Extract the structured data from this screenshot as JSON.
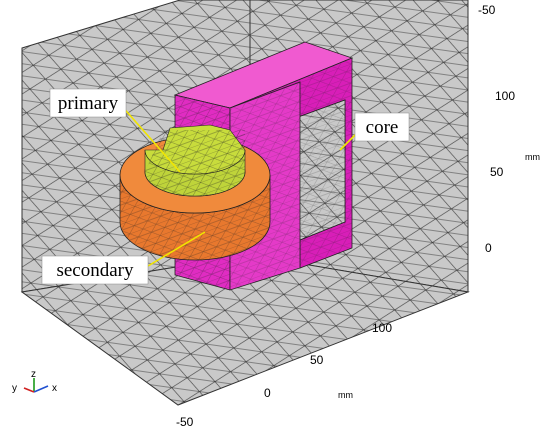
{
  "labels": {
    "primary": "primary",
    "core": "core",
    "secondary": "secondary"
  },
  "back_axis": {
    "ticks": [
      "-50"
    ]
  },
  "vertical_axis": {
    "ticks": [
      "100",
      "50",
      "0"
    ],
    "unit": "mm"
  },
  "floor_axis": {
    "ticks": [
      "100",
      "50",
      "0",
      "-50"
    ],
    "unit": "mm"
  },
  "triad": {
    "z": "z",
    "y": "y",
    "x": "x"
  }
}
